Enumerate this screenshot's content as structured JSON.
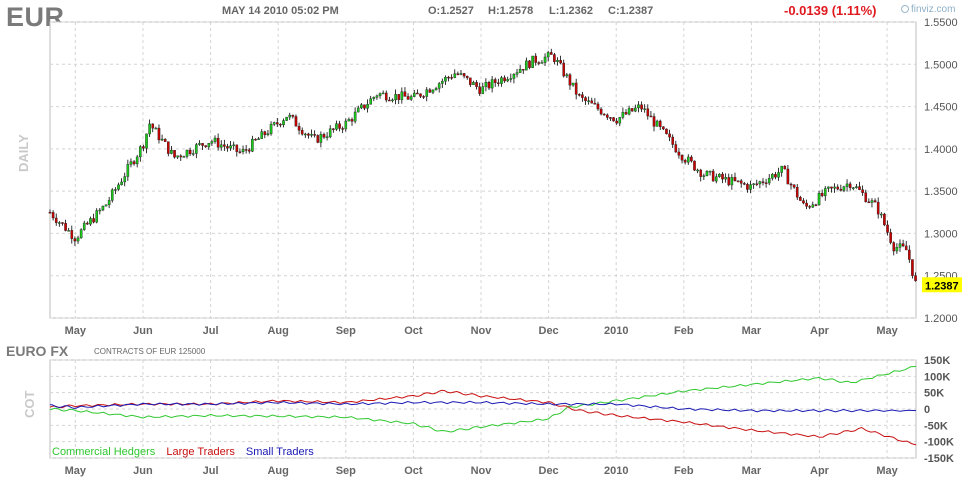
{
  "header": {
    "symbol": "EUR",
    "datetime": "MAY 14 2010 05:02 PM",
    "open": "O:1.2527",
    "high": "H:1.2578",
    "low": "L:1.2362",
    "close": "C:1.2387",
    "change": "-0.0139 (1.11%)",
    "brand": "finviz.com"
  },
  "colors": {
    "up": "#19c819",
    "down": "#c80000",
    "grid": "#d4d4d4",
    "commercial": "#2fc82f",
    "large": "#c81010",
    "small": "#1919b4",
    "price_tag": "#ffff00"
  },
  "price_panel": {
    "side_label": "DAILY",
    "last_price_label": "1.2387"
  },
  "cot_panel": {
    "title": "EURO FX",
    "subtitle": "CONTRACTS OF EUR 125000",
    "side_label": "COT",
    "legend": [
      "Commercial Hedgers",
      "Large Traders",
      "Small Traders"
    ]
  },
  "chart_data": [
    {
      "type": "candlestick",
      "x_tick_labels": [
        "May",
        "Jun",
        "Jul",
        "Aug",
        "Sep",
        "Oct",
        "Nov",
        "Dec",
        "2010",
        "Feb",
        "Mar",
        "Apr",
        "May"
      ],
      "y_tick_labels": [
        "1.2000",
        "1.2500",
        "1.3000",
        "1.3500",
        "1.4000",
        "1.4500",
        "1.5000",
        "1.5500"
      ],
      "ylim": [
        1.2,
        1.55
      ],
      "grid": true,
      "last": 1.2387,
      "monthly_anchors": [
        {
          "date": "Apr 20",
          "price": 1.325
        },
        {
          "date": "May 1",
          "price": 1.295
        },
        {
          "date": "May 15",
          "price": 1.335
        },
        {
          "date": "Jun 1",
          "price": 1.405
        },
        {
          "date": "Jun 4",
          "price": 1.43
        },
        {
          "date": "Jun 15",
          "price": 1.39
        },
        {
          "date": "Jul 1",
          "price": 1.41
        },
        {
          "date": "Jul 15",
          "price": 1.395
        },
        {
          "date": "Aug 5",
          "price": 1.44
        },
        {
          "date": "Aug 17",
          "price": 1.41
        },
        {
          "date": "Sep 1",
          "price": 1.43
        },
        {
          "date": "Sep 15",
          "price": 1.465
        },
        {
          "date": "Oct 1",
          "price": 1.46
        },
        {
          "date": "Oct 20",
          "price": 1.49
        },
        {
          "date": "Nov 1",
          "price": 1.47
        },
        {
          "date": "Nov 15",
          "price": 1.49
        },
        {
          "date": "Nov 25",
          "price": 1.505
        },
        {
          "date": "Dec 3",
          "price": 1.51
        },
        {
          "date": "Dec 15",
          "price": 1.46
        },
        {
          "date": "Jan 1",
          "price": 1.435
        },
        {
          "date": "Jan 12",
          "price": 1.45
        },
        {
          "date": "Feb 1",
          "price": 1.39
        },
        {
          "date": "Feb 10",
          "price": 1.37
        },
        {
          "date": "Mar 1",
          "price": 1.355
        },
        {
          "date": "Mar 15",
          "price": 1.375
        },
        {
          "date": "Mar 25",
          "price": 1.33
        },
        {
          "date": "Apr 5",
          "price": 1.35
        },
        {
          "date": "Apr 15",
          "price": 1.36
        },
        {
          "date": "Apr 27",
          "price": 1.33
        },
        {
          "date": "May 4",
          "price": 1.285
        },
        {
          "date": "May 10",
          "price": 1.28
        },
        {
          "date": "May 14",
          "price": 1.2387
        }
      ]
    },
    {
      "type": "line",
      "x_tick_labels": [
        "May",
        "Jun",
        "Jul",
        "Aug",
        "Sep",
        "Oct",
        "Nov",
        "Dec",
        "2010",
        "Feb",
        "Mar",
        "Apr",
        "May"
      ],
      "y_tick_labels": [
        "150K",
        "100K",
        "50K",
        "0",
        "-50K",
        "-100K",
        "-150K"
      ],
      "ylim": [
        -150000,
        150000
      ],
      "grid": true,
      "legend_position": "bottom-left",
      "series": [
        {
          "name": "Commercial Hedgers",
          "points": [
            {
              "date": "Apr 20",
              "value": 0
            },
            {
              "date": "May 1",
              "value": -5000
            },
            {
              "date": "Jun 1",
              "value": -25000
            },
            {
              "date": "Jul 1",
              "value": -20000
            },
            {
              "date": "Aug 1",
              "value": -22000
            },
            {
              "date": "Sep 1",
              "value": -25000
            },
            {
              "date": "Oct 1",
              "value": -45000
            },
            {
              "date": "Oct 15",
              "value": -70000
            },
            {
              "date": "Nov 1",
              "value": -55000
            },
            {
              "date": "Dec 1",
              "value": -30000
            },
            {
              "date": "Dec 10",
              "value": 5000
            },
            {
              "date": "Jan 1",
              "value": 25000
            },
            {
              "date": "Feb 1",
              "value": 55000
            },
            {
              "date": "Mar 1",
              "value": 75000
            },
            {
              "date": "Apr 1",
              "value": 95000
            },
            {
              "date": "Apr 15",
              "value": 80000
            },
            {
              "date": "May 14",
              "value": 130000
            }
          ]
        },
        {
          "name": "Large Traders",
          "points": [
            {
              "date": "Apr 20",
              "value": 5000
            },
            {
              "date": "May 1",
              "value": 10000
            },
            {
              "date": "Jun 1",
              "value": 15000
            },
            {
              "date": "Jul 1",
              "value": 15000
            },
            {
              "date": "Aug 1",
              "value": 25000
            },
            {
              "date": "Sep 1",
              "value": 20000
            },
            {
              "date": "Oct 1",
              "value": 40000
            },
            {
              "date": "Oct 15",
              "value": 55000
            },
            {
              "date": "Nov 1",
              "value": 40000
            },
            {
              "date": "Dec 1",
              "value": 20000
            },
            {
              "date": "Dec 15",
              "value": -5000
            },
            {
              "date": "Jan 1",
              "value": -20000
            },
            {
              "date": "Feb 1",
              "value": -40000
            },
            {
              "date": "Mar 1",
              "value": -65000
            },
            {
              "date": "Apr 1",
              "value": -85000
            },
            {
              "date": "Apr 20",
              "value": -60000
            },
            {
              "date": "May 14",
              "value": -110000
            }
          ]
        },
        {
          "name": "Small Traders",
          "points": [
            {
              "date": "Apr 20",
              "value": 10000
            },
            {
              "date": "May 1",
              "value": 5000
            },
            {
              "date": "Jun 1",
              "value": 15000
            },
            {
              "date": "Jul 1",
              "value": 15000
            },
            {
              "date": "Aug 1",
              "value": 20000
            },
            {
              "date": "Sep 1",
              "value": 15000
            },
            {
              "date": "Oct 1",
              "value": 20000
            },
            {
              "date": "Nov 1",
              "value": 20000
            },
            {
              "date": "Dec 1",
              "value": 15000
            },
            {
              "date": "Jan 1",
              "value": 15000
            },
            {
              "date": "Feb 1",
              "value": 0
            },
            {
              "date": "Mar 1",
              "value": -5000
            },
            {
              "date": "Apr 1",
              "value": -5000
            },
            {
              "date": "May 14",
              "value": -5000
            }
          ]
        }
      ]
    }
  ]
}
